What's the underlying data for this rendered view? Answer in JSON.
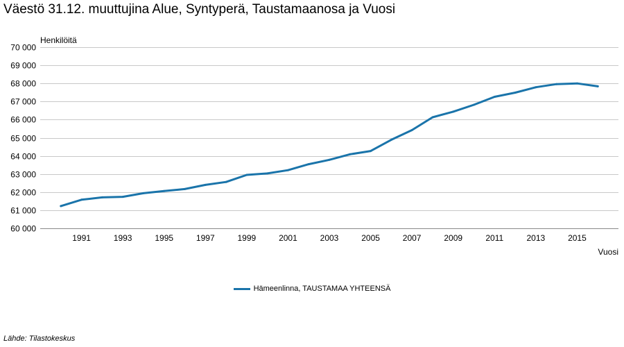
{
  "title": "Väestö 31.12. muuttujina Alue, Syntyperä, Taustamaanosa ja Vuosi",
  "source": "Lähde: Tilastokeskus",
  "colors": {
    "series": "#1a74aa",
    "grid": "#c8c8c8",
    "axis": "#888888"
  },
  "chart_data": {
    "type": "line",
    "ylabel": "Henkilöitä",
    "xlabel": "Vuosi",
    "ylim": [
      60000,
      70000
    ],
    "yticks": [
      60000,
      61000,
      62000,
      63000,
      64000,
      65000,
      66000,
      67000,
      68000,
      69000,
      70000
    ],
    "ytick_labels": [
      "60 000",
      "61 000",
      "62 000",
      "63 000",
      "64 000",
      "65 000",
      "66 000",
      "67 000",
      "68 000",
      "69 000",
      "70 000"
    ],
    "xticks": [
      1991,
      1993,
      1995,
      1997,
      1999,
      2001,
      2003,
      2005,
      2007,
      2009,
      2011,
      2013,
      2015
    ],
    "x": [
      1990,
      1991,
      1992,
      1993,
      1994,
      1995,
      1996,
      1997,
      1998,
      1999,
      2000,
      2001,
      2002,
      2003,
      2004,
      2005,
      2006,
      2007,
      2008,
      2009,
      2010,
      2011,
      2012,
      2013,
      2014,
      2015,
      2016
    ],
    "grid": true,
    "legend_position": "bottom",
    "series": [
      {
        "name": "Hämeenlinna, TAUSTAMAA YHTEENSÄ",
        "values": [
          61230,
          61580,
          61710,
          61740,
          61940,
          62060,
          62170,
          62400,
          62560,
          62950,
          63030,
          63210,
          63540,
          63780,
          64090,
          64270,
          64890,
          65420,
          66130,
          66440,
          66820,
          67260,
          67490,
          67790,
          67960,
          68000,
          67840
        ]
      }
    ]
  }
}
